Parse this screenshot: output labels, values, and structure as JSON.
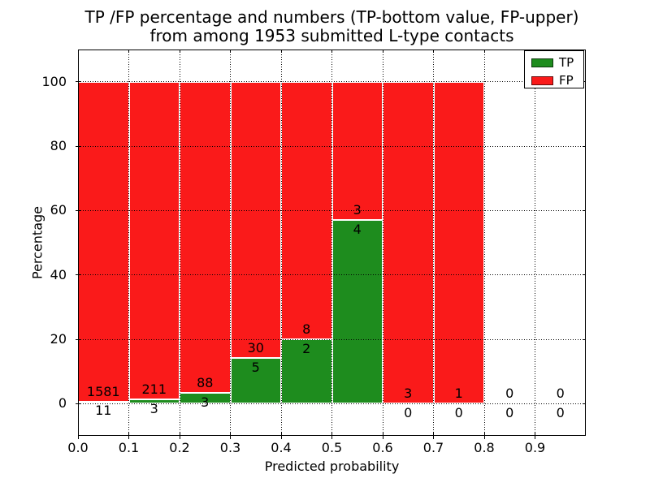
{
  "figure": {
    "title_line1": "TP /FP percentage and numbers (TP-bottom value, FP-upper)",
    "title_line2": "from among 1953 submitted L-type contacts"
  },
  "chart_data": {
    "type": "bar",
    "stacked": true,
    "title": "TP /FP percentage and numbers (TP-bottom value, FP-upper)\nfrom among 1953 submitted L-type contacts",
    "xlabel": "Predicted probability",
    "ylabel": "Percentage",
    "xlim": [
      0.0,
      1.0
    ],
    "ylim": [
      -10,
      110
    ],
    "x_tick_values": [
      0.0,
      0.1,
      0.2,
      0.3,
      0.4,
      0.5,
      0.6,
      0.7,
      0.8,
      0.9
    ],
    "x_tick_labels": [
      "0.0",
      "0.1",
      "0.2",
      "0.3",
      "0.4",
      "0.5",
      "0.6",
      "0.7",
      "0.8",
      "0.9"
    ],
    "y_tick_values": [
      0,
      20,
      40,
      60,
      80,
      100
    ],
    "y_tick_labels": [
      "0",
      "20",
      "40",
      "60",
      "80",
      "100"
    ],
    "grid": {
      "style": "dotted",
      "color": "#000000",
      "above_bars": true
    },
    "legend": {
      "position": "upper-right",
      "entries": [
        {
          "label": "TP",
          "color": "#1e8c1e"
        },
        {
          "label": "FP",
          "color": "#fa1a1a"
        }
      ]
    },
    "total_submitted": 1953,
    "bins": [
      {
        "x_start": 0.0,
        "x_end": 0.1,
        "tp_count": 11,
        "fp_count": 1581,
        "tp_pct": 0.69,
        "fp_pct": 99.31
      },
      {
        "x_start": 0.1,
        "x_end": 0.2,
        "tp_count": 3,
        "fp_count": 211,
        "tp_pct": 1.4,
        "fp_pct": 98.6
      },
      {
        "x_start": 0.2,
        "x_end": 0.3,
        "tp_count": 3,
        "fp_count": 88,
        "tp_pct": 3.3,
        "fp_pct": 96.7
      },
      {
        "x_start": 0.3,
        "x_end": 0.4,
        "tp_count": 5,
        "fp_count": 30,
        "tp_pct": 14.29,
        "fp_pct": 85.71
      },
      {
        "x_start": 0.4,
        "x_end": 0.5,
        "tp_count": 2,
        "fp_count": 8,
        "tp_pct": 20.0,
        "fp_pct": 80.0
      },
      {
        "x_start": 0.5,
        "x_end": 0.6,
        "tp_count": 4,
        "fp_count": 3,
        "tp_pct": 57.14,
        "fp_pct": 42.86
      },
      {
        "x_start": 0.6,
        "x_end": 0.7,
        "tp_count": 0,
        "fp_count": 3,
        "tp_pct": 0.0,
        "fp_pct": 100.0
      },
      {
        "x_start": 0.7,
        "x_end": 0.8,
        "tp_count": 0,
        "fp_count": 1,
        "tp_pct": 0.0,
        "fp_pct": 100.0
      },
      {
        "x_start": 0.8,
        "x_end": 0.9,
        "tp_count": 0,
        "fp_count": 0,
        "tp_pct": 0.0,
        "fp_pct": 0.0
      },
      {
        "x_start": 0.9,
        "x_end": 1.0,
        "tp_count": 0,
        "fp_count": 0,
        "tp_pct": 0.0,
        "fp_pct": 0.0
      }
    ]
  },
  "colors": {
    "tp": "#1e8c1e",
    "fp": "#fa1a1a",
    "bar_edge": "#ffffff",
    "grid": "#000000",
    "spine": "#000000",
    "text": "#000000",
    "background": "#ffffff"
  }
}
